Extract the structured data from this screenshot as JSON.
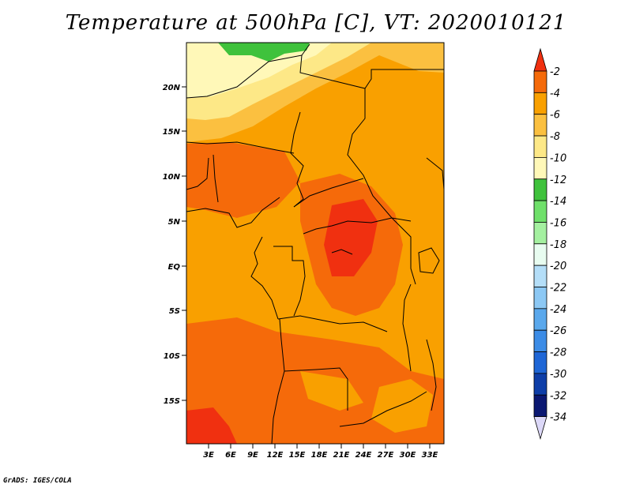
{
  "title": "Temperature at 500hPa [C], VT: 2020010121",
  "credit": "GrADS: IGES/COLA",
  "map": {
    "lat_labels": [
      "20N",
      "15N",
      "10N",
      "5N",
      "EQ",
      "5S",
      "10S",
      "15S"
    ],
    "lon_labels": [
      "3E",
      "6E",
      "9E",
      "12E",
      "15E",
      "18E",
      "21E",
      "24E",
      "27E",
      "30E",
      "33E"
    ]
  },
  "colorbar": {
    "labels": [
      "-2",
      "-4",
      "-6",
      "-8",
      "-10",
      "-12",
      "-14",
      "-16",
      "-18",
      "-20",
      "-22",
      "-24",
      "-26",
      "-28",
      "-30",
      "-32",
      "-34"
    ],
    "colors": [
      "#f03010",
      "#f56a0a",
      "#f9a000",
      "#fbc040",
      "#fde887",
      "#fff8b8",
      "#3fc23c",
      "#6fe06a",
      "#a4f0a0",
      "#e8fcf0",
      "#b4def8",
      "#8cc8f4",
      "#5aa8ec",
      "#3c8ce6",
      "#1e66d6",
      "#0e3ea8",
      "#0b1872",
      "#dcd8f8"
    ]
  }
}
